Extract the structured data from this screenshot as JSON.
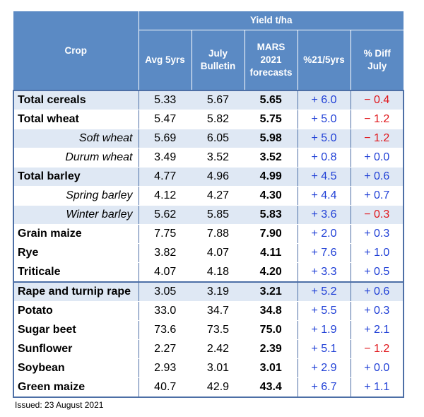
{
  "header": {
    "crop": "Crop",
    "yield_group": "Yield t/ha",
    "columns": [
      {
        "l1": "Avg 5yrs",
        "l2": "",
        "l3": ""
      },
      {
        "l1": "July",
        "l2": "Bulletin",
        "l3": ""
      },
      {
        "l1": "MARS",
        "l2": "2021",
        "l3": "forecasts"
      },
      {
        "l1": "%21/5yrs",
        "l2": "",
        "l3": ""
      },
      {
        "l1": "% Diff",
        "l2": "July",
        "l3": ""
      }
    ]
  },
  "rows": [
    {
      "crop": "Total cereals",
      "avg5": "5.33",
      "july": "5.67",
      "forecast": "5.65",
      "pct5": "+ 6.0",
      "diff": "− 0.4"
    },
    {
      "crop": "Total wheat",
      "avg5": "5.47",
      "july": "5.82",
      "forecast": "5.75",
      "pct5": "+ 5.0",
      "diff": "− 1.2"
    },
    {
      "crop": "Soft wheat",
      "avg5": "5.69",
      "july": "6.05",
      "forecast": "5.98",
      "pct5": "+ 5.0",
      "diff": "− 1.2"
    },
    {
      "crop": "Durum wheat",
      "avg5": "3.49",
      "july": "3.52",
      "forecast": "3.52",
      "pct5": "+ 0.8",
      "diff": "+ 0.0"
    },
    {
      "crop": "Total barley",
      "avg5": "4.77",
      "july": "4.96",
      "forecast": "4.99",
      "pct5": "+ 4.5",
      "diff": "+ 0.6"
    },
    {
      "crop": "Spring barley",
      "avg5": "4.12",
      "july": "4.27",
      "forecast": "4.30",
      "pct5": "+ 4.4",
      "diff": "+ 0.7"
    },
    {
      "crop": "Winter barley",
      "avg5": "5.62",
      "july": "5.85",
      "forecast": "5.83",
      "pct5": "+ 3.6",
      "diff": "− 0.3"
    },
    {
      "crop": "Grain maize",
      "avg5": "7.75",
      "july": "7.88",
      "forecast": "7.90",
      "pct5": "+ 2.0",
      "diff": "+ 0.3"
    },
    {
      "crop": "Rye",
      "avg5": "3.82",
      "july": "4.07",
      "forecast": "4.11",
      "pct5": "+ 7.6",
      "diff": "+ 1.0"
    },
    {
      "crop": "Triticale",
      "avg5": "4.07",
      "july": "4.18",
      "forecast": "4.20",
      "pct5": "+ 3.3",
      "diff": "+ 0.5"
    },
    {
      "crop": "Rape and turnip rape",
      "avg5": "3.05",
      "july": "3.19",
      "forecast": "3.21",
      "pct5": "+ 5.2",
      "diff": "+ 0.6"
    },
    {
      "crop": "Potato",
      "avg5": "33.0",
      "july": "34.7",
      "forecast": "34.8",
      "pct5": "+ 5.5",
      "diff": "+ 0.3"
    },
    {
      "crop": "Sugar beet",
      "avg5": "73.6",
      "july": "73.5",
      "forecast": "75.0",
      "pct5": "+ 1.9",
      "diff": "+ 2.1"
    },
    {
      "crop": "Sunflower",
      "avg5": "2.27",
      "july": "2.42",
      "forecast": "2.39",
      "pct5": "+ 5.1",
      "diff": "− 1.2"
    },
    {
      "crop": "Soybean",
      "avg5": "2.93",
      "july": "3.01",
      "forecast": "3.01",
      "pct5": "+ 2.9",
      "diff": "+ 0.0"
    },
    {
      "crop": "Green maize",
      "avg5": "40.7",
      "july": "42.9",
      "forecast": "43.4",
      "pct5": "+ 6.7",
      "diff": "+ 1.1"
    }
  ],
  "footer": {
    "issued": "Issued: 23 August 2021"
  },
  "colors": {
    "header_bg": "#5b8ac4",
    "row_shade": "#dfe8f4",
    "positive": "#1f3fd6",
    "negative": "#e0161b"
  }
}
